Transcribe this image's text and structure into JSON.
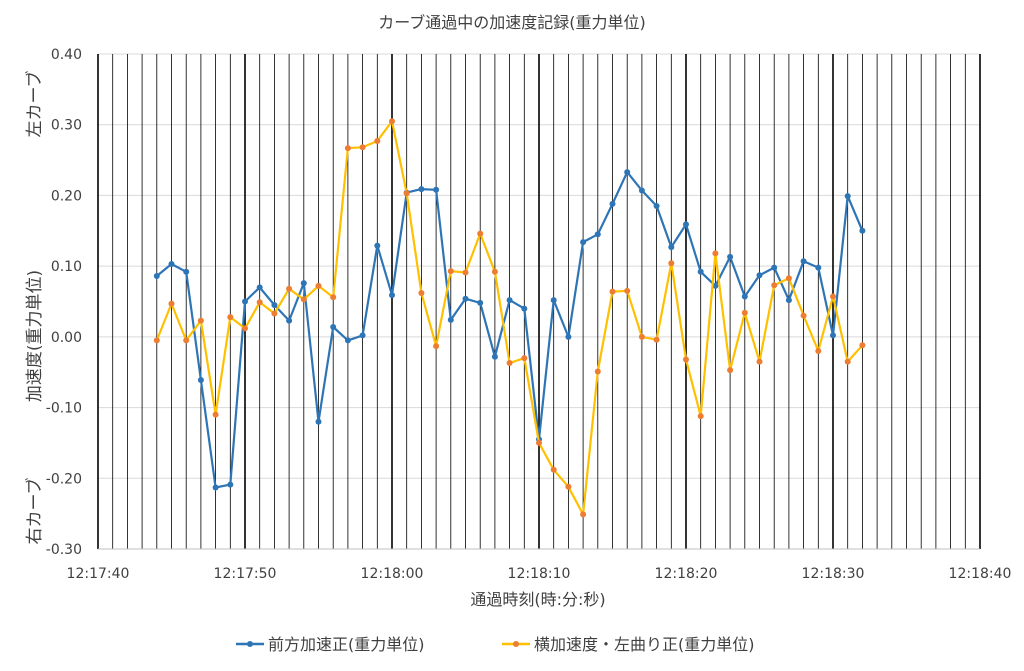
{
  "chart_data": {
    "type": "line",
    "title": "カーブ通過中の加速度記録(重力単位)",
    "xlabel": "通過時刻(時:分:秒)",
    "ylabel": "加速度(重力単位)",
    "ylabel_top": "左カーブ",
    "ylabel_bottom": "右カーブ",
    "ylim": [
      -0.3,
      0.4
    ],
    "yticks": [
      -0.3,
      -0.2,
      -0.1,
      0.0,
      0.1,
      0.2,
      0.3,
      0.4
    ],
    "ytick_labels": [
      "-0.30",
      "-0.20",
      "-0.10",
      "0.00",
      "0.10",
      "0.20",
      "0.30",
      "0.40"
    ],
    "xlim": [
      "12:17:40",
      "12:18:40"
    ],
    "xticks": [
      "12:17:40",
      "12:17:50",
      "12:18:00",
      "12:18:10",
      "12:18:20",
      "12:18:30",
      "12:18:40"
    ],
    "grid": "vertical lines every second, heavier every 10 seconds; horizontal lines at y ticks",
    "legend": "bottom",
    "x": [
      "12:17:44",
      "12:17:45",
      "12:17:46",
      "12:17:47",
      "12:17:48",
      "12:17:49",
      "12:17:50",
      "12:17:51",
      "12:17:52",
      "12:17:53",
      "12:17:54",
      "12:17:55",
      "12:17:56",
      "12:17:57",
      "12:17:58",
      "12:17:59",
      "12:18:00",
      "12:18:01",
      "12:18:02",
      "12:18:03",
      "12:18:04",
      "12:18:05",
      "12:18:06",
      "12:18:07",
      "12:18:08",
      "12:18:09",
      "12:18:10",
      "12:18:11",
      "12:18:12",
      "12:18:13",
      "12:18:14",
      "12:18:15",
      "12:18:16",
      "12:18:17",
      "12:18:18",
      "12:18:19",
      "12:18:20",
      "12:18:21",
      "12:18:22",
      "12:18:23",
      "12:18:24",
      "12:18:25",
      "12:18:26",
      "12:18:27",
      "12:18:28",
      "12:18:29",
      "12:18:30",
      "12:18:31",
      "12:18:32"
    ],
    "series": [
      {
        "name": "前方加速正(重力単位)",
        "color": "#2E75B6",
        "values": [
          0.086,
          0.103,
          0.092,
          -0.061,
          -0.213,
          -0.209,
          0.05,
          0.07,
          0.045,
          0.023,
          0.076,
          -0.12,
          0.014,
          -0.005,
          0.002,
          0.129,
          0.059,
          0.204,
          0.209,
          0.208,
          0.024,
          0.054,
          0.048,
          -0.028,
          0.052,
          0.04,
          -0.145,
          0.052,
          0.0,
          0.134,
          0.145,
          0.188,
          0.233,
          0.207,
          0.185,
          0.127,
          0.159,
          0.092,
          0.072,
          0.113,
          0.057,
          0.087,
          0.098,
          0.052,
          0.107,
          0.098,
          0.002,
          0.199,
          0.15
        ]
      },
      {
        "name": "横加速度・左曲り正(重力単位)",
        "color": "#FFC000",
        "marker_color": "#ED7D31",
        "values": [
          -0.005,
          0.047,
          -0.005,
          0.023,
          -0.11,
          0.028,
          0.012,
          0.049,
          0.033,
          0.068,
          0.053,
          0.072,
          0.056,
          0.267,
          0.268,
          0.277,
          0.305,
          0.203,
          0.062,
          -0.013,
          0.093,
          0.091,
          0.146,
          0.092,
          -0.037,
          -0.03,
          -0.15,
          -0.188,
          -0.212,
          -0.251,
          -0.049,
          0.064,
          0.065,
          0.0,
          -0.004,
          0.104,
          -0.032,
          -0.112,
          0.118,
          -0.047,
          0.034,
          -0.035,
          0.073,
          0.083,
          0.03,
          -0.02,
          0.057,
          -0.035,
          -0.012
        ]
      }
    ]
  }
}
